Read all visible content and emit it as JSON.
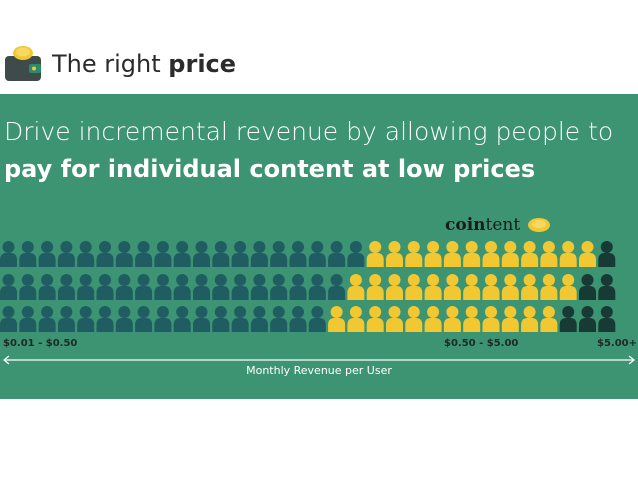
{
  "header": {
    "title_regular": "The right",
    "title_bold": "price",
    "icon": "wallet-coin-icon"
  },
  "headline": {
    "line1": "Drive incremental revenue by allowing people to",
    "line2": "pay for individual content at low prices"
  },
  "brand": {
    "part_bold": "coin",
    "part_regular": "tent",
    "icon": "coin-icon"
  },
  "people_grid": {
    "rows": [
      {
        "teal": 19,
        "yellow": 12,
        "dark": 1
      },
      {
        "teal": 18,
        "yellow": 12,
        "dark": 2
      },
      {
        "teal": 17,
        "yellow": 12,
        "dark": 3
      }
    ],
    "colors": {
      "teal": "#1f5d63",
      "yellow": "#f2c832",
      "dark": "#173a34"
    }
  },
  "ranges": {
    "low": "$0.01 - $0.50",
    "mid": "$0.50 - $5.00",
    "high": "$5.00+"
  },
  "axis": {
    "label": "Monthly Revenue per User"
  },
  "colors": {
    "panel": "#3d9472",
    "text_dark": "#2b2b2b"
  }
}
